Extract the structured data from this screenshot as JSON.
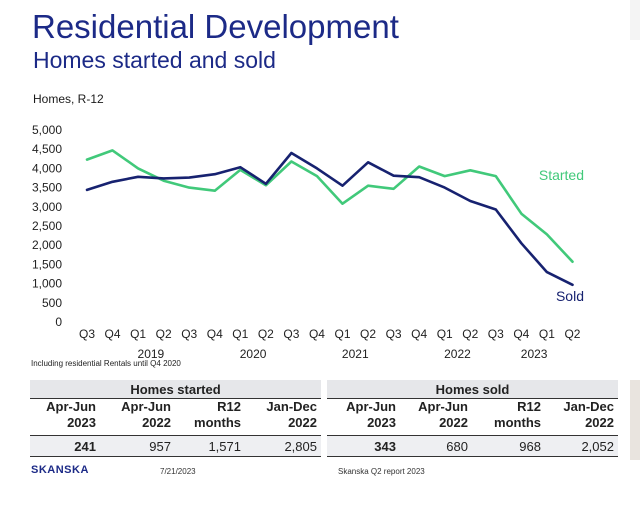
{
  "title": "Residential Development",
  "subtitle": "Homes started and sold",
  "unit_label": "Homes, R-12",
  "note": "Including residential Rentals until Q4 2020",
  "colors": {
    "started": "#41c97a",
    "sold": "#172270",
    "title": "#1c2a87"
  },
  "chart_data": {
    "type": "line",
    "categories": [
      "Q3",
      "Q4",
      "Q1",
      "Q2",
      "Q3",
      "Q4",
      "Q1",
      "Q2",
      "Q3",
      "Q4",
      "Q1",
      "Q2",
      "Q3",
      "Q4",
      "Q1",
      "Q2",
      "Q3",
      "Q4",
      "Q1",
      "Q2"
    ],
    "year_labels": [
      {
        "label": "2019",
        "from": 1,
        "to": 4
      },
      {
        "label": "2020",
        "from": 5,
        "to": 8
      },
      {
        "label": "2021",
        "from": 9,
        "to": 12
      },
      {
        "label": "2022",
        "from": 13,
        "to": 16
      },
      {
        "label": "2023",
        "from": 17,
        "to": 18
      }
    ],
    "yticks": [
      "5,000",
      "4,500",
      "4,000",
      "3,500",
      "3,000",
      "2,500",
      "2,000",
      "1,500",
      "1,000",
      "500",
      "0"
    ],
    "ylim": [
      0,
      5000
    ],
    "series": [
      {
        "name": "Started",
        "values": [
          4230,
          4470,
          4000,
          3680,
          3500,
          3420,
          3960,
          3560,
          4180,
          3800,
          3080,
          3550,
          3470,
          4050,
          3800,
          3950,
          3800,
          2820,
          2280,
          1570
        ]
      },
      {
        "name": "Sold",
        "values": [
          3440,
          3650,
          3780,
          3740,
          3760,
          3850,
          4030,
          3600,
          4400,
          4000,
          3550,
          4160,
          3810,
          3770,
          3500,
          3150,
          2930,
          2050,
          1300,
          970
        ]
      }
    ]
  },
  "tables": [
    {
      "heading": "Homes started",
      "columns": [
        [
          "Apr-Jun",
          "2023"
        ],
        [
          "Apr-Jun",
          "2022"
        ],
        [
          "R12",
          "months"
        ],
        [
          "Jan-Dec",
          "2022"
        ]
      ],
      "values": [
        "241",
        "957",
        "1,571",
        "2,805"
      ]
    },
    {
      "heading": "Homes sold",
      "columns": [
        [
          "Apr-Jun",
          "2023"
        ],
        [
          "Apr-Jun",
          "2022"
        ],
        [
          "R12",
          "months"
        ],
        [
          "Jan-Dec",
          "2022"
        ]
      ],
      "values": [
        "343",
        "680",
        "968",
        "2,052"
      ]
    }
  ],
  "footer": {
    "logo": "SKANSKA",
    "date": "7/21/2023",
    "report": "Skanska Q2 report 2023"
  }
}
